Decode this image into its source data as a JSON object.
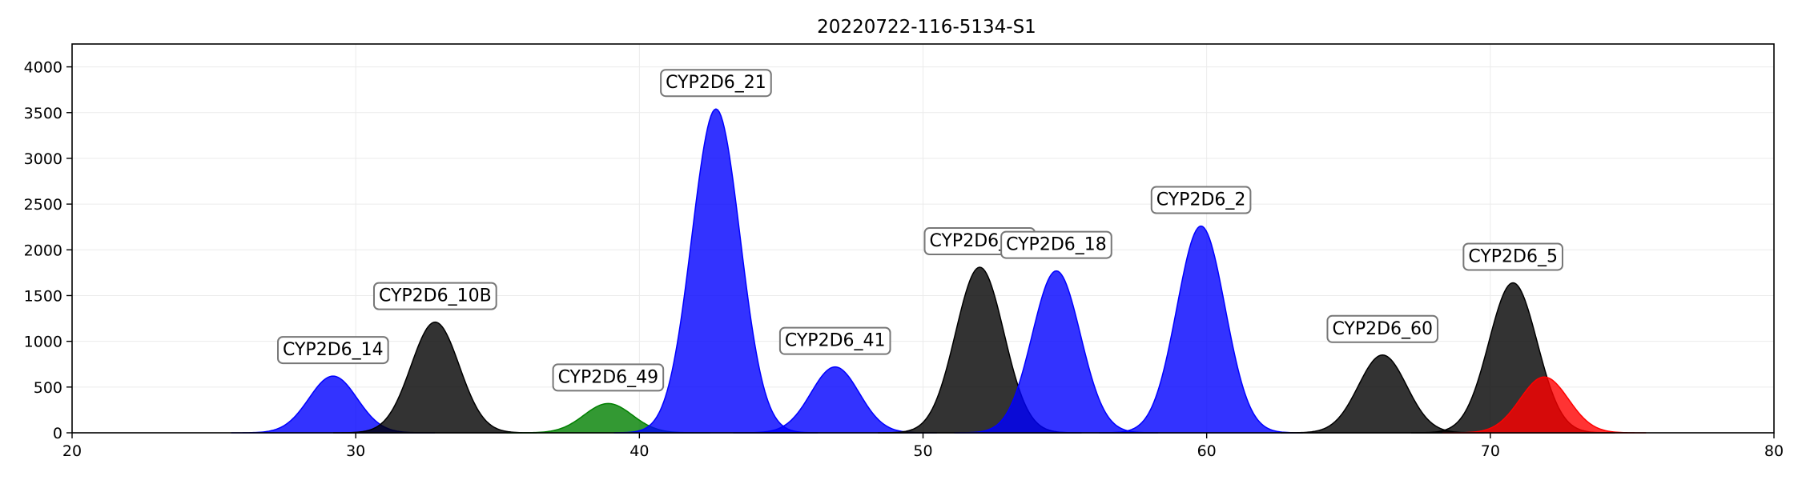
{
  "chart_data": {
    "type": "area",
    "title": "20220722-116-5134-S1",
    "xlabel": "",
    "ylabel": "",
    "xlim": [
      20,
      80
    ],
    "ylim": [
      0,
      4250
    ],
    "x_ticks": [
      20,
      30,
      40,
      50,
      60,
      70,
      80
    ],
    "y_ticks": [
      0,
      500,
      1000,
      1500,
      2000,
      2500,
      3000,
      3500,
      4000
    ],
    "grid": true,
    "legend": "none",
    "peaks": [
      {
        "label": "CYP2D6_14",
        "x": 29.2,
        "height": 620,
        "sigma": 0.85,
        "color": "#0000ff"
      },
      {
        "label": "CYP2D6_10B",
        "x": 32.8,
        "height": 1210,
        "sigma": 0.85,
        "color": "#000000"
      },
      {
        "label": "CYP2D6_49",
        "x": 38.9,
        "height": 320,
        "sigma": 0.85,
        "color": "#008000"
      },
      {
        "label": "CYP2D6_21",
        "x": 42.7,
        "height": 3540,
        "sigma": 0.85,
        "color": "#0000ff"
      },
      {
        "label": "CYP2D6_41",
        "x": 46.9,
        "height": 720,
        "sigma": 0.85,
        "color": "#0000ff"
      },
      {
        "label": "CYP2D6_52",
        "x": 52.0,
        "height": 1810,
        "sigma": 0.85,
        "color": "#000000"
      },
      {
        "label": "CYP2D6_18",
        "x": 54.7,
        "height": 1770,
        "sigma": 0.85,
        "color": "#0000ff"
      },
      {
        "label": "CYP2D6_2",
        "x": 59.8,
        "height": 2260,
        "sigma": 0.85,
        "color": "#0000ff"
      },
      {
        "label": "CYP2D6_60",
        "x": 66.2,
        "height": 850,
        "sigma": 0.85,
        "color": "#000000"
      },
      {
        "label": "CYP2D6_5",
        "x": 70.8,
        "height": 1640,
        "sigma": 0.85,
        "color": "#000000"
      },
      {
        "label": "",
        "x": 71.9,
        "height": 610,
        "sigma": 0.85,
        "color": "#ff0000"
      }
    ]
  }
}
